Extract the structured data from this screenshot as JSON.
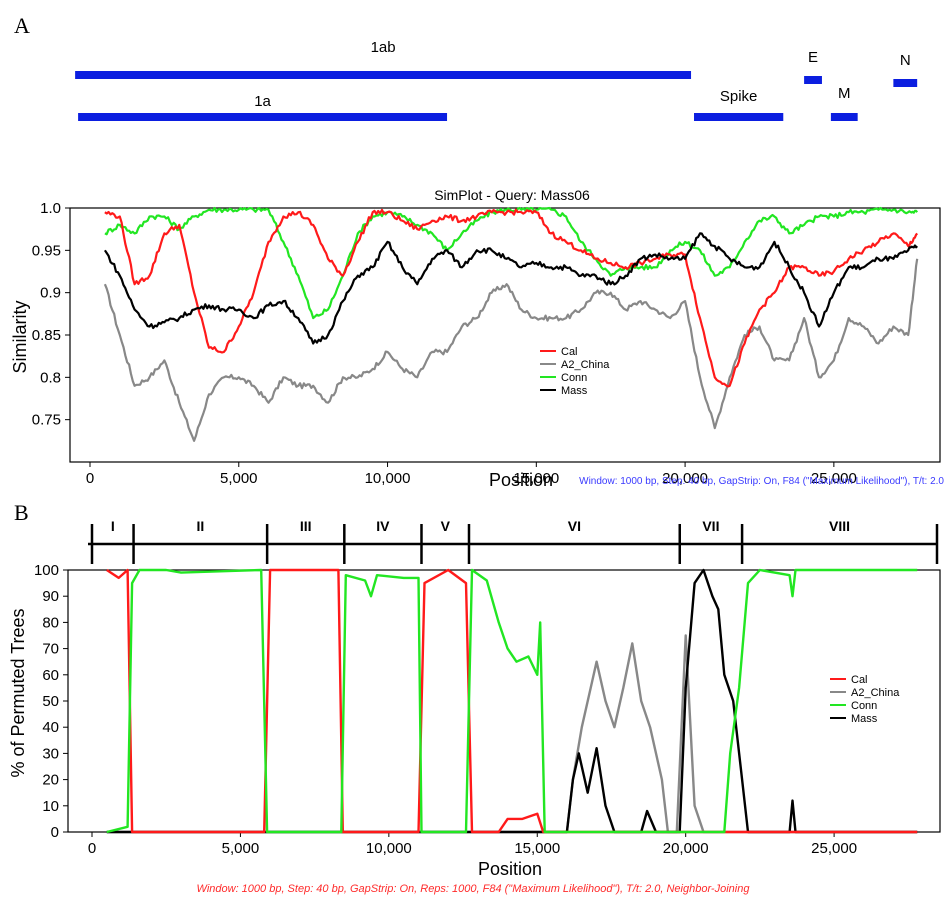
{
  "panelA": {
    "letter": "A",
    "title": "SimPlot - Query: Mass06",
    "ylabel": "Similarity",
    "xlabel": "Position",
    "note": "Window: 1000 bp, Step: 40 bp, GapStrip: On, F84 (\"Maximum Likelihood\"), T/t: 2.0"
  },
  "panelB": {
    "letter": "B",
    "ylabel": "% of Permuted Trees",
    "xlabel": "Position",
    "note": "Window: 1000 bp, Step: 40 bp, GapStrip: On, Reps: 1000, F84 (\"Maximum Likelihood\"), T/t: 2.0, Neighbor-Joining"
  },
  "genes": [
    {
      "name": "1ab",
      "start": -500,
      "end": 20200
    },
    {
      "name": "1a",
      "start": -400,
      "end": 12000
    },
    {
      "name": "Spike",
      "start": 20300,
      "end": 23300
    },
    {
      "name": "E",
      "start": 24000,
      "end": 24600
    },
    {
      "name": "M",
      "start": 24900,
      "end": 25800
    },
    {
      "name": "N",
      "start": 27000,
      "end": 27800
    }
  ],
  "segments": {
    "labels": [
      "I",
      "II",
      "III",
      "IV",
      "V",
      "VI",
      "VII",
      "VIII"
    ],
    "boundaries": [
      0,
      1400,
      5900,
      8500,
      11100,
      12700,
      19800,
      21900,
      28500
    ]
  },
  "colors": {
    "Cal": "#ff1a1a",
    "A2_China": "#888888",
    "Conn": "#22e622",
    "Mass": "#000000"
  },
  "chart_data": [
    {
      "type": "line",
      "title": "SimPlot - Query: Mass06",
      "xlabel": "Position",
      "ylabel": "Similarity",
      "xlim": [
        0,
        28500
      ],
      "ylim": [
        0.7,
        1.0
      ],
      "xticks": [
        "0",
        "5,000",
        "10,000",
        "15,000",
        "20,000",
        "25,000"
      ],
      "xtick_values": [
        0,
        5000,
        10000,
        15000,
        20000,
        25000
      ],
      "yticks": [
        "0.75",
        "0.8",
        "0.85",
        "0.9",
        "0.95",
        "1.0"
      ],
      "ytick_values": [
        0.75,
        0.8,
        0.85,
        0.9,
        0.95,
        1.0
      ],
      "legend": "center-right",
      "x": [
        500,
        1000,
        1500,
        2000,
        2500,
        3000,
        3500,
        4000,
        4500,
        5000,
        5500,
        6000,
        6500,
        7000,
        7500,
        8000,
        8500,
        9000,
        9500,
        10000,
        10500,
        11000,
        11500,
        12000,
        12500,
        13000,
        13500,
        14000,
        14500,
        15000,
        15500,
        16000,
        16500,
        17000,
        17500,
        18000,
        18500,
        19000,
        19500,
        20000,
        20500,
        21000,
        21500,
        22000,
        22500,
        23000,
        23500,
        24000,
        24500,
        25000,
        25500,
        26000,
        26500,
        27000,
        27500,
        27800
      ],
      "series": [
        {
          "name": "Cal",
          "values": [
            0.995,
            0.99,
            0.91,
            0.92,
            0.97,
            0.98,
            0.9,
            0.835,
            0.83,
            0.86,
            0.9,
            0.96,
            0.99,
            0.995,
            0.98,
            0.94,
            0.92,
            0.96,
            0.995,
            0.995,
            0.985,
            0.975,
            0.985,
            0.99,
            0.985,
            0.99,
            0.995,
            0.995,
            0.995,
            0.995,
            0.97,
            0.96,
            0.95,
            0.94,
            0.935,
            0.93,
            0.935,
            0.94,
            0.945,
            0.945,
            0.87,
            0.8,
            0.79,
            0.84,
            0.88,
            0.9,
            0.93,
            0.93,
            0.92,
            0.925,
            0.94,
            0.95,
            0.96,
            0.97,
            0.955,
            0.97
          ]
        },
        {
          "name": "A2_China",
          "values": [
            0.91,
            0.85,
            0.79,
            0.8,
            0.82,
            0.77,
            0.725,
            0.78,
            0.8,
            0.8,
            0.79,
            0.77,
            0.8,
            0.79,
            0.79,
            0.77,
            0.8,
            0.8,
            0.81,
            0.83,
            0.81,
            0.8,
            0.83,
            0.83,
            0.86,
            0.87,
            0.9,
            0.91,
            0.88,
            0.87,
            0.87,
            0.87,
            0.88,
            0.9,
            0.9,
            0.88,
            0.89,
            0.88,
            0.87,
            0.89,
            0.8,
            0.74,
            0.8,
            0.85,
            0.86,
            0.82,
            0.82,
            0.87,
            0.8,
            0.82,
            0.87,
            0.86,
            0.84,
            0.86,
            0.85,
            0.94
          ]
        },
        {
          "name": "Conn",
          "values": [
            0.97,
            0.98,
            0.97,
            0.99,
            0.99,
            0.975,
            0.99,
            0.998,
            0.998,
            0.998,
            0.998,
            0.998,
            0.96,
            0.92,
            0.87,
            0.88,
            0.92,
            0.97,
            0.99,
            0.995,
            0.99,
            0.98,
            0.97,
            0.95,
            0.97,
            0.985,
            0.995,
            0.998,
            0.998,
            0.998,
            0.998,
            0.99,
            0.96,
            0.94,
            0.92,
            0.93,
            0.93,
            0.93,
            0.95,
            0.96,
            0.95,
            0.92,
            0.93,
            0.96,
            0.985,
            0.99,
            0.97,
            0.98,
            0.99,
            0.99,
            0.995,
            0.995,
            0.998,
            0.998,
            0.995,
            0.995
          ]
        },
        {
          "name": "Mass",
          "values": [
            0.95,
            0.92,
            0.88,
            0.86,
            0.865,
            0.87,
            0.88,
            0.885,
            0.88,
            0.88,
            0.87,
            0.885,
            0.89,
            0.87,
            0.84,
            0.85,
            0.89,
            0.92,
            0.93,
            0.96,
            0.93,
            0.91,
            0.94,
            0.95,
            0.93,
            0.95,
            0.95,
            0.94,
            0.93,
            0.935,
            0.93,
            0.93,
            0.92,
            0.92,
            0.91,
            0.92,
            0.94,
            0.945,
            0.94,
            0.94,
            0.97,
            0.955,
            0.94,
            0.93,
            0.93,
            0.96,
            0.93,
            0.9,
            0.86,
            0.9,
            0.93,
            0.93,
            0.94,
            0.94,
            0.95,
            0.955
          ]
        }
      ]
    },
    {
      "type": "line",
      "title": "",
      "xlabel": "Position",
      "ylabel": "% of Permuted Trees",
      "xlim": [
        0,
        28500
      ],
      "ylim": [
        0,
        100
      ],
      "xticks": [
        "0",
        "5,000",
        "10,000",
        "15,000",
        "20,000",
        "25,000"
      ],
      "xtick_values": [
        0,
        5000,
        10000,
        15000,
        20000,
        25000
      ],
      "yticks": [
        "0",
        "10",
        "20",
        "30",
        "40",
        "50",
        "60",
        "70",
        "80",
        "90",
        "100"
      ],
      "ytick_values": [
        0,
        10,
        20,
        30,
        40,
        50,
        60,
        70,
        80,
        90,
        100
      ],
      "legend": "center-right",
      "series": [
        {
          "name": "Cal",
          "points": [
            [
              500,
              100
            ],
            [
              900,
              97
            ],
            [
              1200,
              100
            ],
            [
              1350,
              0
            ],
            [
              5800,
              0
            ],
            [
              6000,
              100
            ],
            [
              8300,
              100
            ],
            [
              8450,
              0
            ],
            [
              11000,
              0
            ],
            [
              11200,
              95
            ],
            [
              12000,
              100
            ],
            [
              12600,
              95
            ],
            [
              12800,
              0
            ],
            [
              13700,
              0
            ],
            [
              14000,
              5
            ],
            [
              14500,
              5
            ],
            [
              15000,
              7
            ],
            [
              15200,
              0
            ],
            [
              27800,
              0
            ]
          ]
        },
        {
          "name": "A2_China",
          "points": [
            [
              500,
              0
            ],
            [
              16000,
              0
            ],
            [
              16200,
              20
            ],
            [
              16500,
              40
            ],
            [
              16800,
              55
            ],
            [
              17000,
              65
            ],
            [
              17300,
              50
            ],
            [
              17600,
              40
            ],
            [
              17900,
              55
            ],
            [
              18200,
              72
            ],
            [
              18500,
              50
            ],
            [
              18800,
              40
            ],
            [
              19000,
              30
            ],
            [
              19200,
              20
            ],
            [
              19400,
              0
            ],
            [
              19700,
              0
            ],
            [
              20000,
              75
            ],
            [
              20300,
              10
            ],
            [
              20600,
              0
            ],
            [
              27800,
              0
            ]
          ]
        },
        {
          "name": "Conn",
          "points": [
            [
              500,
              0
            ],
            [
              1200,
              2
            ],
            [
              1350,
              95
            ],
            [
              1600,
              100
            ],
            [
              2500,
              100
            ],
            [
              3000,
              99
            ],
            [
              5700,
              100
            ],
            [
              5900,
              0
            ],
            [
              8400,
              0
            ],
            [
              8550,
              98
            ],
            [
              9200,
              96
            ],
            [
              9400,
              90
            ],
            [
              9600,
              98
            ],
            [
              10500,
              97
            ],
            [
              11000,
              97
            ],
            [
              11100,
              0
            ],
            [
              12600,
              0
            ],
            [
              12800,
              100
            ],
            [
              13300,
              96
            ],
            [
              13700,
              80
            ],
            [
              14000,
              70
            ],
            [
              14300,
              65
            ],
            [
              14700,
              67
            ],
            [
              15000,
              60
            ],
            [
              15100,
              80
            ],
            [
              15250,
              0
            ],
            [
              21300,
              0
            ],
            [
              21500,
              30
            ],
            [
              21800,
              55
            ],
            [
              22100,
              95
            ],
            [
              22500,
              100
            ],
            [
              23500,
              98
            ],
            [
              23600,
              90
            ],
            [
              23700,
              100
            ],
            [
              27800,
              100
            ]
          ]
        },
        {
          "name": "Mass",
          "points": [
            [
              500,
              0
            ],
            [
              16000,
              0
            ],
            [
              16200,
              20
            ],
            [
              16400,
              30
            ],
            [
              16700,
              15
            ],
            [
              17000,
              32
            ],
            [
              17300,
              10
            ],
            [
              17600,
              0
            ],
            [
              18500,
              0
            ],
            [
              18700,
              8
            ],
            [
              19000,
              0
            ],
            [
              19800,
              0
            ],
            [
              20000,
              55
            ],
            [
              20300,
              95
            ],
            [
              20600,
              100
            ],
            [
              20900,
              90
            ],
            [
              21100,
              85
            ],
            [
              21300,
              60
            ],
            [
              21600,
              50
            ],
            [
              21900,
              20
            ],
            [
              22100,
              0
            ],
            [
              23500,
              0
            ],
            [
              23600,
              12
            ],
            [
              23700,
              0
            ],
            [
              27800,
              0
            ]
          ]
        }
      ]
    }
  ]
}
